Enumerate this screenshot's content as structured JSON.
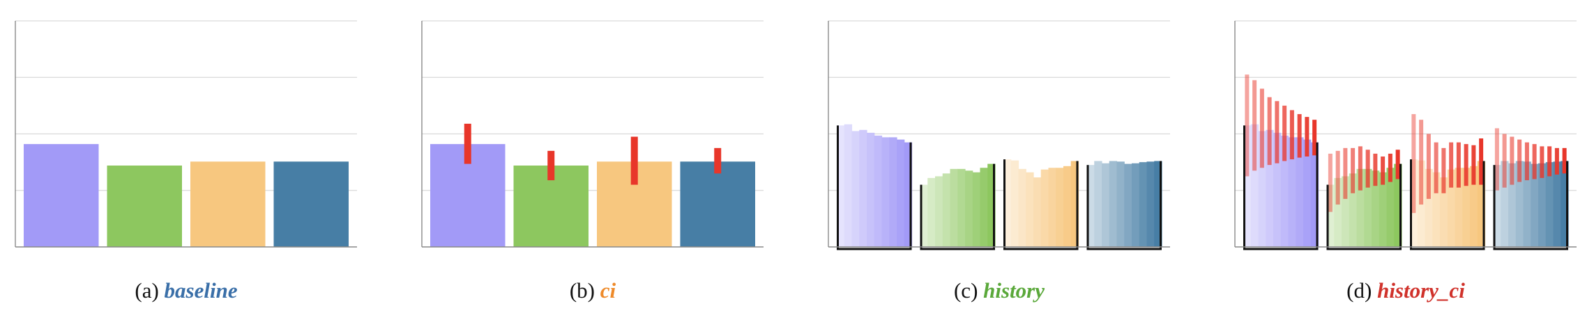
{
  "palette": {
    "purple": "#a29af7",
    "green": "#8dc75f",
    "orange": "#f7c77f",
    "blue": "#477ea5",
    "error": "#e8362a",
    "grid": "#d9d9d9",
    "axis": "#888888",
    "frame": "#111111"
  },
  "chart_data": [
    {
      "type": "bar",
      "caption_prefix": "(a) ",
      "caption_emph": "baseline",
      "caption_color": "#3a6fa8",
      "ylim": [
        0,
        4
      ],
      "grid": true,
      "series": [
        {
          "color": "#a29af7",
          "values": [
            1.82
          ]
        },
        {
          "color": "#8dc75f",
          "values": [
            1.44
          ]
        },
        {
          "color": "#f7c77f",
          "values": [
            1.51
          ]
        },
        {
          "color": "#477ea5",
          "values": [
            1.51
          ]
        }
      ]
    },
    {
      "type": "bar",
      "caption_prefix": "(b) ",
      "caption_emph": "ci",
      "caption_color": "#ee8a2a",
      "ylim": [
        0,
        4
      ],
      "grid": true,
      "series": [
        {
          "color": "#a29af7",
          "values": [
            1.82
          ],
          "ci": [
            [
              1.47,
              2.18
            ]
          ]
        },
        {
          "color": "#8dc75f",
          "values": [
            1.44
          ],
          "ci": [
            [
              1.18,
              1.7
            ]
          ]
        },
        {
          "color": "#f7c77f",
          "values": [
            1.51
          ],
          "ci": [
            [
              1.1,
              1.95
            ]
          ]
        },
        {
          "color": "#477ea5",
          "values": [
            1.51
          ],
          "ci": [
            [
              1.3,
              1.75
            ]
          ]
        }
      ]
    },
    {
      "type": "bar",
      "caption_prefix": "(c) ",
      "caption_emph": "history",
      "caption_color": "#5aa83a",
      "ylim": [
        0,
        4
      ],
      "grid": true,
      "series": [
        {
          "color": "#a29af7",
          "values": [
            2.15,
            2.17,
            2.05,
            2.07,
            2.02,
            1.97,
            1.94,
            1.94,
            1.9,
            1.85
          ]
        },
        {
          "color": "#8dc75f",
          "values": [
            1.1,
            1.22,
            1.25,
            1.3,
            1.38,
            1.38,
            1.35,
            1.32,
            1.4,
            1.47
          ]
        },
        {
          "color": "#f7c77f",
          "values": [
            1.55,
            1.53,
            1.38,
            1.32,
            1.23,
            1.37,
            1.4,
            1.4,
            1.43,
            1.52
          ]
        },
        {
          "color": "#477ea5",
          "values": [
            1.45,
            1.52,
            1.48,
            1.52,
            1.51,
            1.47,
            1.48,
            1.5,
            1.51,
            1.52
          ]
        }
      ]
    },
    {
      "type": "bar",
      "caption_prefix": "(d) ",
      "caption_emph": "history_ci",
      "caption_color": "#d0322b",
      "ylim": [
        0,
        4
      ],
      "grid": true,
      "series": [
        {
          "color": "#a29af7",
          "values": [
            2.15,
            2.17,
            2.05,
            2.07,
            2.02,
            1.97,
            1.94,
            1.94,
            1.9,
            1.85
          ],
          "ci": [
            [
              1.25,
              3.05
            ],
            [
              1.35,
              2.95
            ],
            [
              1.4,
              2.8
            ],
            [
              1.45,
              2.65
            ],
            [
              1.48,
              2.58
            ],
            [
              1.52,
              2.5
            ],
            [
              1.55,
              2.42
            ],
            [
              1.58,
              2.35
            ],
            [
              1.6,
              2.3
            ],
            [
              1.62,
              2.25
            ]
          ]
        },
        {
          "color": "#8dc75f",
          "values": [
            1.1,
            1.22,
            1.25,
            1.3,
            1.38,
            1.38,
            1.35,
            1.32,
            1.4,
            1.47
          ],
          "ci": [
            [
              0.62,
              1.65
            ],
            [
              0.75,
              1.7
            ],
            [
              0.85,
              1.75
            ],
            [
              0.95,
              1.75
            ],
            [
              1.0,
              1.78
            ],
            [
              1.05,
              1.72
            ],
            [
              1.08,
              1.65
            ],
            [
              1.1,
              1.6
            ],
            [
              1.15,
              1.65
            ],
            [
              1.2,
              1.72
            ]
          ]
        },
        {
          "color": "#f7c77f",
          "values": [
            1.55,
            1.53,
            1.38,
            1.32,
            1.23,
            1.37,
            1.4,
            1.4,
            1.43,
            1.52
          ],
          "ci": [
            [
              0.6,
              2.35
            ],
            [
              0.75,
              2.25
            ],
            [
              0.85,
              2.0
            ],
            [
              0.95,
              1.85
            ],
            [
              0.95,
              1.75
            ],
            [
              1.05,
              1.85
            ],
            [
              1.05,
              1.85
            ],
            [
              1.08,
              1.82
            ],
            [
              1.1,
              1.8
            ],
            [
              1.1,
              1.92
            ]
          ]
        },
        {
          "color": "#477ea5",
          "values": [
            1.45,
            1.52,
            1.48,
            1.52,
            1.51,
            1.47,
            1.48,
            1.5,
            1.51,
            1.52
          ],
          "ci": [
            [
              1.0,
              2.1
            ],
            [
              1.05,
              2.0
            ],
            [
              1.1,
              1.95
            ],
            [
              1.15,
              1.9
            ],
            [
              1.18,
              1.85
            ],
            [
              1.2,
              1.82
            ],
            [
              1.22,
              1.78
            ],
            [
              1.25,
              1.78
            ],
            [
              1.28,
              1.75
            ],
            [
              1.3,
              1.75
            ]
          ]
        }
      ]
    }
  ]
}
